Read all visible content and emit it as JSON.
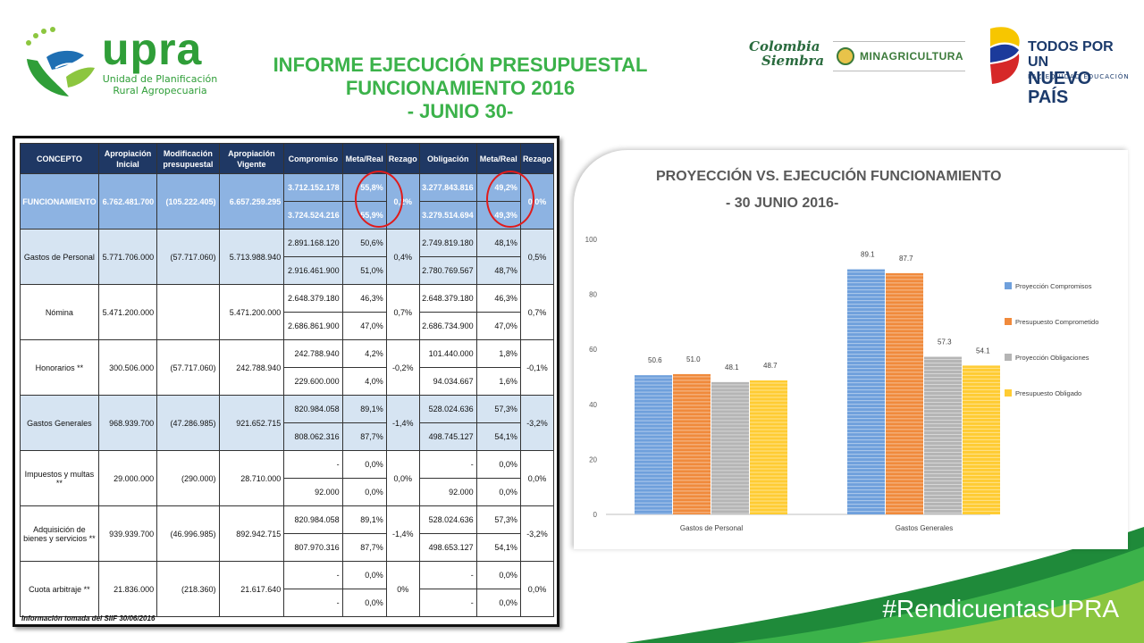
{
  "logo": {
    "name": "upra",
    "line1": "Unidad de Planificación",
    "line2": "Rural Agropecuaria"
  },
  "title": {
    "line1": "INFORME EJECUCIÓN PRESUPUESTAL",
    "line2": "FUNCIONAMIENTO 2016",
    "line3": "- JUNIO 30-"
  },
  "partners": {
    "colombia_siembra_1": "Colombia",
    "colombia_siembra_2": "Siembra",
    "minagri": "MINAGRICULTURA",
    "todos_1": "TODOS POR UN",
    "todos_2": "NUEVO PAÍS",
    "todos_3": "PAZ  EQUIDAD  EDUCACIÓN"
  },
  "colors": {
    "green": "#3bb24a",
    "header_navy": "#1f3864",
    "func_blue": "#8db3e2",
    "row_blue": "#d6e4f2"
  },
  "table": {
    "headers": [
      "CONCEPTO",
      "Apropiación Inicial",
      "Modificación presupuestal",
      "Apropiación Vigente",
      "Compromiso",
      "Meta/Real",
      "Rezago",
      "Obligación",
      "Meta/Real",
      "Rezago"
    ],
    "rows": [
      {
        "concept": "FUNCIONAMIENTO",
        "inicial": "6.762.481.700",
        "modif": "(105.222.405)",
        "vigente": "6.657.259.295",
        "comp1": "3.712.152.178",
        "mr1": "55,8%",
        "comp2": "3.724.524.216",
        "mr2": "55,9%",
        "rez1": "0,2%",
        "obl1": "3.277.843.816",
        "mo1": "49,2%",
        "obl2": "3.279.514.694",
        "mo2": "49,3%",
        "rez2": "0,0%"
      },
      {
        "concept": "Gastos de Personal",
        "inicial": "5.771.706.000",
        "modif": "(57.717.060)",
        "vigente": "5.713.988.940",
        "comp1": "2.891.168.120",
        "mr1": "50,6%",
        "comp2": "2.916.461.900",
        "mr2": "51,0%",
        "rez1": "0,4%",
        "obl1": "2.749.819.180",
        "mo1": "48,1%",
        "obl2": "2.780.769.567",
        "mo2": "48,7%",
        "rez2": "0,5%"
      },
      {
        "concept": "Nómina",
        "inicial": "5.471.200.000",
        "modif": "",
        "vigente": "5.471.200.000",
        "comp1": "2.648.379.180",
        "mr1": "46,3%",
        "comp2": "2.686.861.900",
        "mr2": "47,0%",
        "rez1": "0,7%",
        "obl1": "2.648.379.180",
        "mo1": "46,3%",
        "obl2": "2.686.734.900",
        "mo2": "47,0%",
        "rez2": "0,7%"
      },
      {
        "concept": "Honorarios  **",
        "inicial": "300.506.000",
        "modif": "(57.717.060)",
        "vigente": "242.788.940",
        "comp1": "242.788.940",
        "mr1": "4,2%",
        "comp2": "229.600.000",
        "mr2": "4,0%",
        "rez1": "-0,2%",
        "obl1": "101.440.000",
        "mo1": "1,8%",
        "obl2": "94.034.667",
        "mo2": "1,6%",
        "rez2": "-0,1%"
      },
      {
        "concept": "Gastos Generales",
        "inicial": "968.939.700",
        "modif": "(47.286.985)",
        "vigente": "921.652.715",
        "comp1": "820.984.058",
        "mr1": "89,1%",
        "comp2": "808.062.316",
        "mr2": "87,7%",
        "rez1": "-1,4%",
        "obl1": "528.024.636",
        "mo1": "57,3%",
        "obl2": "498.745.127",
        "mo2": "54,1%",
        "rez2": "-3,2%"
      },
      {
        "concept": "Impuestos y multas **",
        "inicial": "29.000.000",
        "modif": "(290.000)",
        "vigente": "28.710.000",
        "comp1": "-",
        "mr1": "0,0%",
        "comp2": "92.000",
        "mr2": "0,0%",
        "rez1": "0,0%",
        "obl1": "-",
        "mo1": "0,0%",
        "obl2": "92.000",
        "mo2": "0,0%",
        "rez2": "0,0%"
      },
      {
        "concept": "Adquisición de bienes y servicios **",
        "inicial": "939.939.700",
        "modif": "(46.996.985)",
        "vigente": "892.942.715",
        "comp1": "820.984.058",
        "mr1": "89,1%",
        "comp2": "807.970.316",
        "mr2": "87,7%",
        "rez1": "-1,4%",
        "obl1": "528.024.636",
        "mo1": "57,3%",
        "obl2": "498.653.127",
        "mo2": "54,1%",
        "rez2": "-3,2%"
      },
      {
        "concept": "Cuota arbitraje **",
        "inicial": "21.836.000",
        "modif": "(218.360)",
        "vigente": "21.617.640",
        "comp1": "-",
        "mr1": "0,0%",
        "comp2": "-",
        "mr2": "0,0%",
        "rez1": "0%",
        "obl1": "-",
        "mo1": "0,0%",
        "obl2": "-",
        "mo2": "0,0%",
        "rez2": "0,0%"
      }
    ],
    "footnote": "Información tomada del SIIF 30/06/2016"
  },
  "chart_data": {
    "type": "bar",
    "title": "PROYECCIÓN VS. EJECUCIÓN FUNCIONAMIENTO",
    "subtitle": "- 30 JUNIO 2016-",
    "categories": [
      "Gastos de Personal",
      "Gastos Generales"
    ],
    "series": [
      {
        "name": "Proyección Compromisos",
        "values": [
          50.6,
          89.1
        ],
        "color": "#6fa0dc"
      },
      {
        "name": "Presupuesto Comprometido",
        "values": [
          51.0,
          87.7
        ],
        "color": "#f08a3c"
      },
      {
        "name": "Proyección Obligaciones",
        "values": [
          48.1,
          57.3
        ],
        "color": "#b5b5b5"
      },
      {
        "name": "Presupuesto Obligado",
        "values": [
          48.7,
          54.1
        ],
        "color": "#ffcc33"
      }
    ],
    "value_labels": [
      [
        "50.6",
        "89.1"
      ],
      [
        "51.0",
        "87.7"
      ],
      [
        "48.1",
        "57.3"
      ],
      [
        "48.7",
        "54.1"
      ]
    ],
    "ylim": [
      0,
      100
    ],
    "yticks": [
      "0",
      "20",
      "40",
      "60",
      "80",
      "100"
    ],
    "legend": "right",
    "grid": false
  },
  "hashtag": "#RendicuentasUPRA"
}
